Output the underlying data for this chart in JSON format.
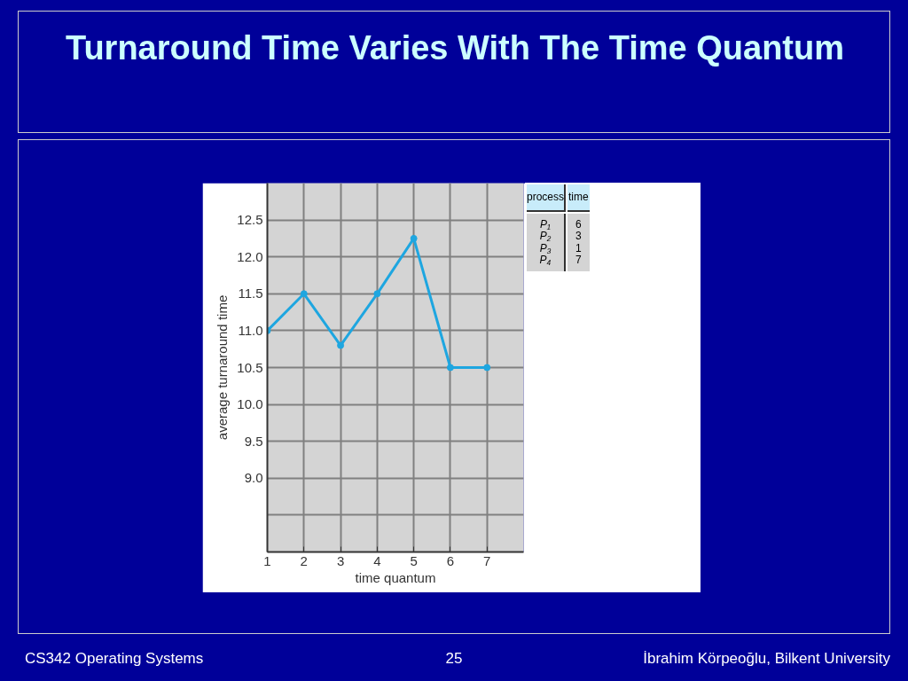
{
  "chart_data": {
    "type": "line",
    "title": "Turnaround Time Varies With The Time Quantum",
    "xlabel": "time quantum",
    "ylabel": "average turnaround time",
    "x": [
      1,
      2,
      3,
      4,
      5,
      6,
      7
    ],
    "series": [
      {
        "color": "#1ea6e0",
        "values": [
          11.0,
          11.5,
          10.8,
          11.5,
          12.25,
          10.5,
          10.5
        ]
      }
    ],
    "xlim": [
      1,
      8
    ],
    "xticks": [
      1,
      2,
      3,
      4,
      5,
      6,
      7
    ],
    "ylim": [
      8.0,
      13.0
    ],
    "yticks": [
      {
        "value": 8.5,
        "label": null
      },
      {
        "value": 9.0,
        "label": "9.0"
      },
      {
        "value": 9.5,
        "label": "9.5"
      },
      {
        "value": 10.0,
        "label": "10.0"
      },
      {
        "value": 10.5,
        "label": "10.5"
      },
      {
        "value": 11.0,
        "label": "11.0"
      },
      {
        "value": 11.5,
        "label": "11.5"
      },
      {
        "value": 12.0,
        "label": "12.0"
      },
      {
        "value": 12.5,
        "label": "12.5"
      }
    ],
    "grid": true,
    "marker": "circle",
    "line_style": "solid",
    "annotations": [
      "process",
      "time",
      "P₁",
      "6",
      "P₂",
      "3",
      "P₃",
      "1",
      "P₄",
      "7",
      "CS342 Operating Systems",
      "25",
      "İbrahim Körpeoğlu, Bilkent University"
    ]
  }
}
